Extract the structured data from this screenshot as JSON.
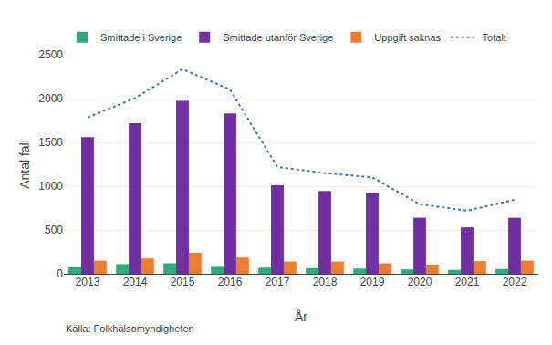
{
  "chart_data": {
    "type": "bar",
    "categories": [
      "2013",
      "2014",
      "2015",
      "2016",
      "2017",
      "2018",
      "2019",
      "2020",
      "2021",
      "2022"
    ],
    "series": [
      {
        "name": "Smittade i Sverige",
        "type": "bar",
        "color": "#2eaa7e",
        "values": [
          75,
          110,
          120,
          90,
          70,
          65,
          60,
          50,
          45,
          55
        ]
      },
      {
        "name": "Smittade utanför Sverige",
        "type": "bar",
        "color": "#7030a0",
        "values": [
          1560,
          1720,
          1975,
          1830,
          1010,
          945,
          920,
          640,
          530,
          640
        ]
      },
      {
        "name": "Uppgift saknas",
        "type": "bar",
        "color": "#ed7d31",
        "values": [
          150,
          175,
          240,
          185,
          140,
          140,
          120,
          105,
          145,
          150
        ]
      },
      {
        "name": "Totalt",
        "type": "line",
        "line_style": "dotted",
        "color": "#4472c4",
        "values": [
          1785,
          2005,
          2335,
          2105,
          1220,
          1150,
          1100,
          795,
          720,
          845
        ]
      }
    ],
    "xlabel": "År",
    "ylabel": "Antal fall",
    "annotations": [
      "Källa: Folkhälsomyndigheten"
    ],
    "ylim": [
      0,
      2500
    ],
    "yticks": [
      0,
      500,
      1000,
      1500,
      2000,
      2500
    ],
    "grid": true,
    "legend": "top"
  }
}
